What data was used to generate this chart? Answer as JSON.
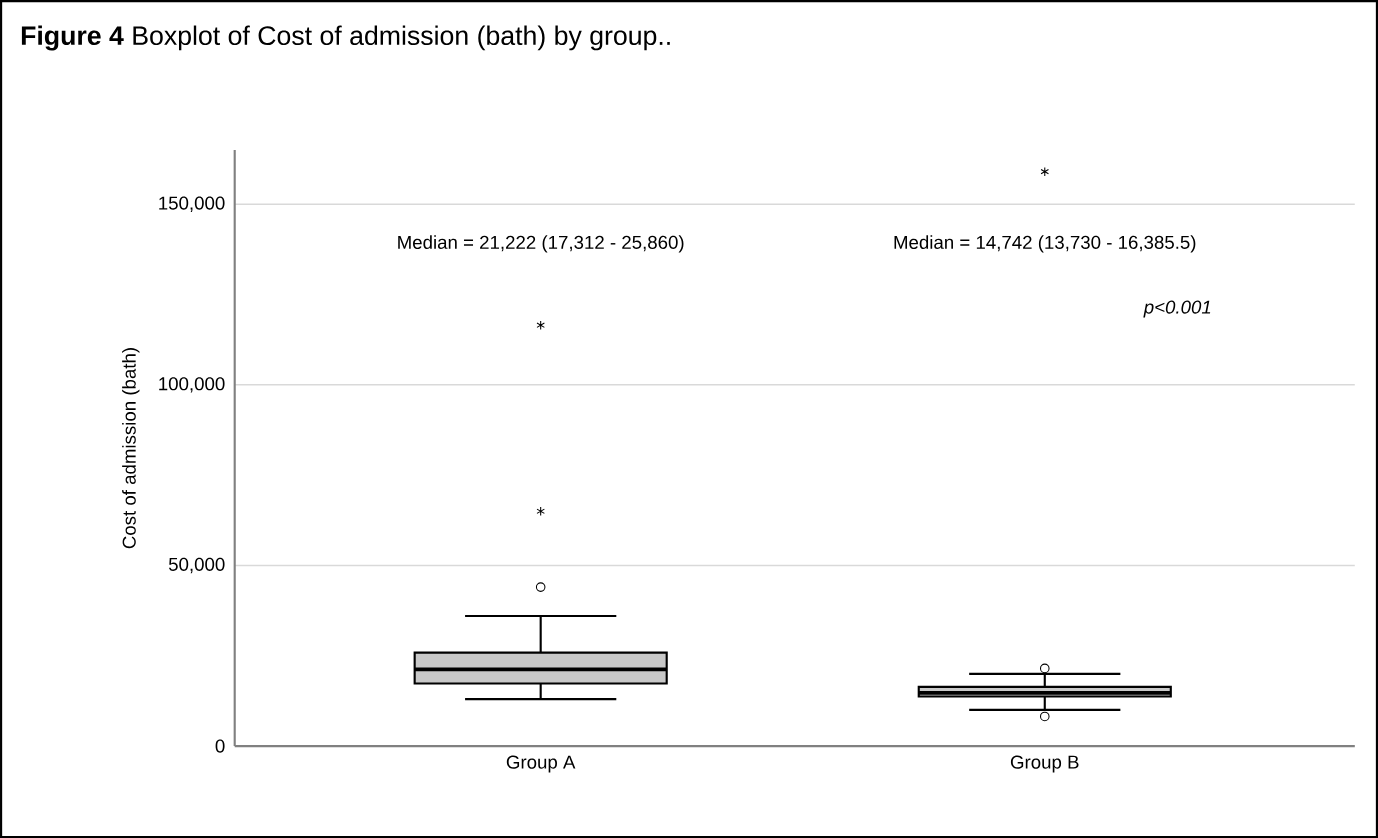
{
  "chart_data": {
    "type": "box",
    "title": "**Figure 4** Boxplot of Cost of admission (bath) by group..",
    "ylabel": "Cost of admission (bath)",
    "categories": [
      "Group A",
      "Group B"
    ],
    "series": [
      {
        "color": "#c8c8c8",
        "boxes": [
          {
            "low": 13000,
            "q1": 17312,
            "median": 21222,
            "q3": 25860,
            "high": 36000,
            "outliers": [
              44000,
              65000,
              116500
            ]
          },
          {
            "low": 10000,
            "q1": 13730,
            "median": 14742,
            "q3": 16385.5,
            "high": 20000,
            "outliers": [
              8200,
              21500,
              159000
            ]
          }
        ]
      }
    ],
    "ylim": [
      0,
      165000
    ],
    "yticks": [
      0,
      {
        "value": 50000,
        "label": "50,000"
      },
      {
        "value": 100000,
        "label": "100,000"
      },
      {
        "value": 150000,
        "label": "150,000"
      }
    ],
    "grid": "y",
    "annotations": [
      "Median = 21,222 (17,312 - 25,860)",
      "Median = 14,742 (13,730 - 16,385.5)",
      "p<0.001"
    ]
  }
}
